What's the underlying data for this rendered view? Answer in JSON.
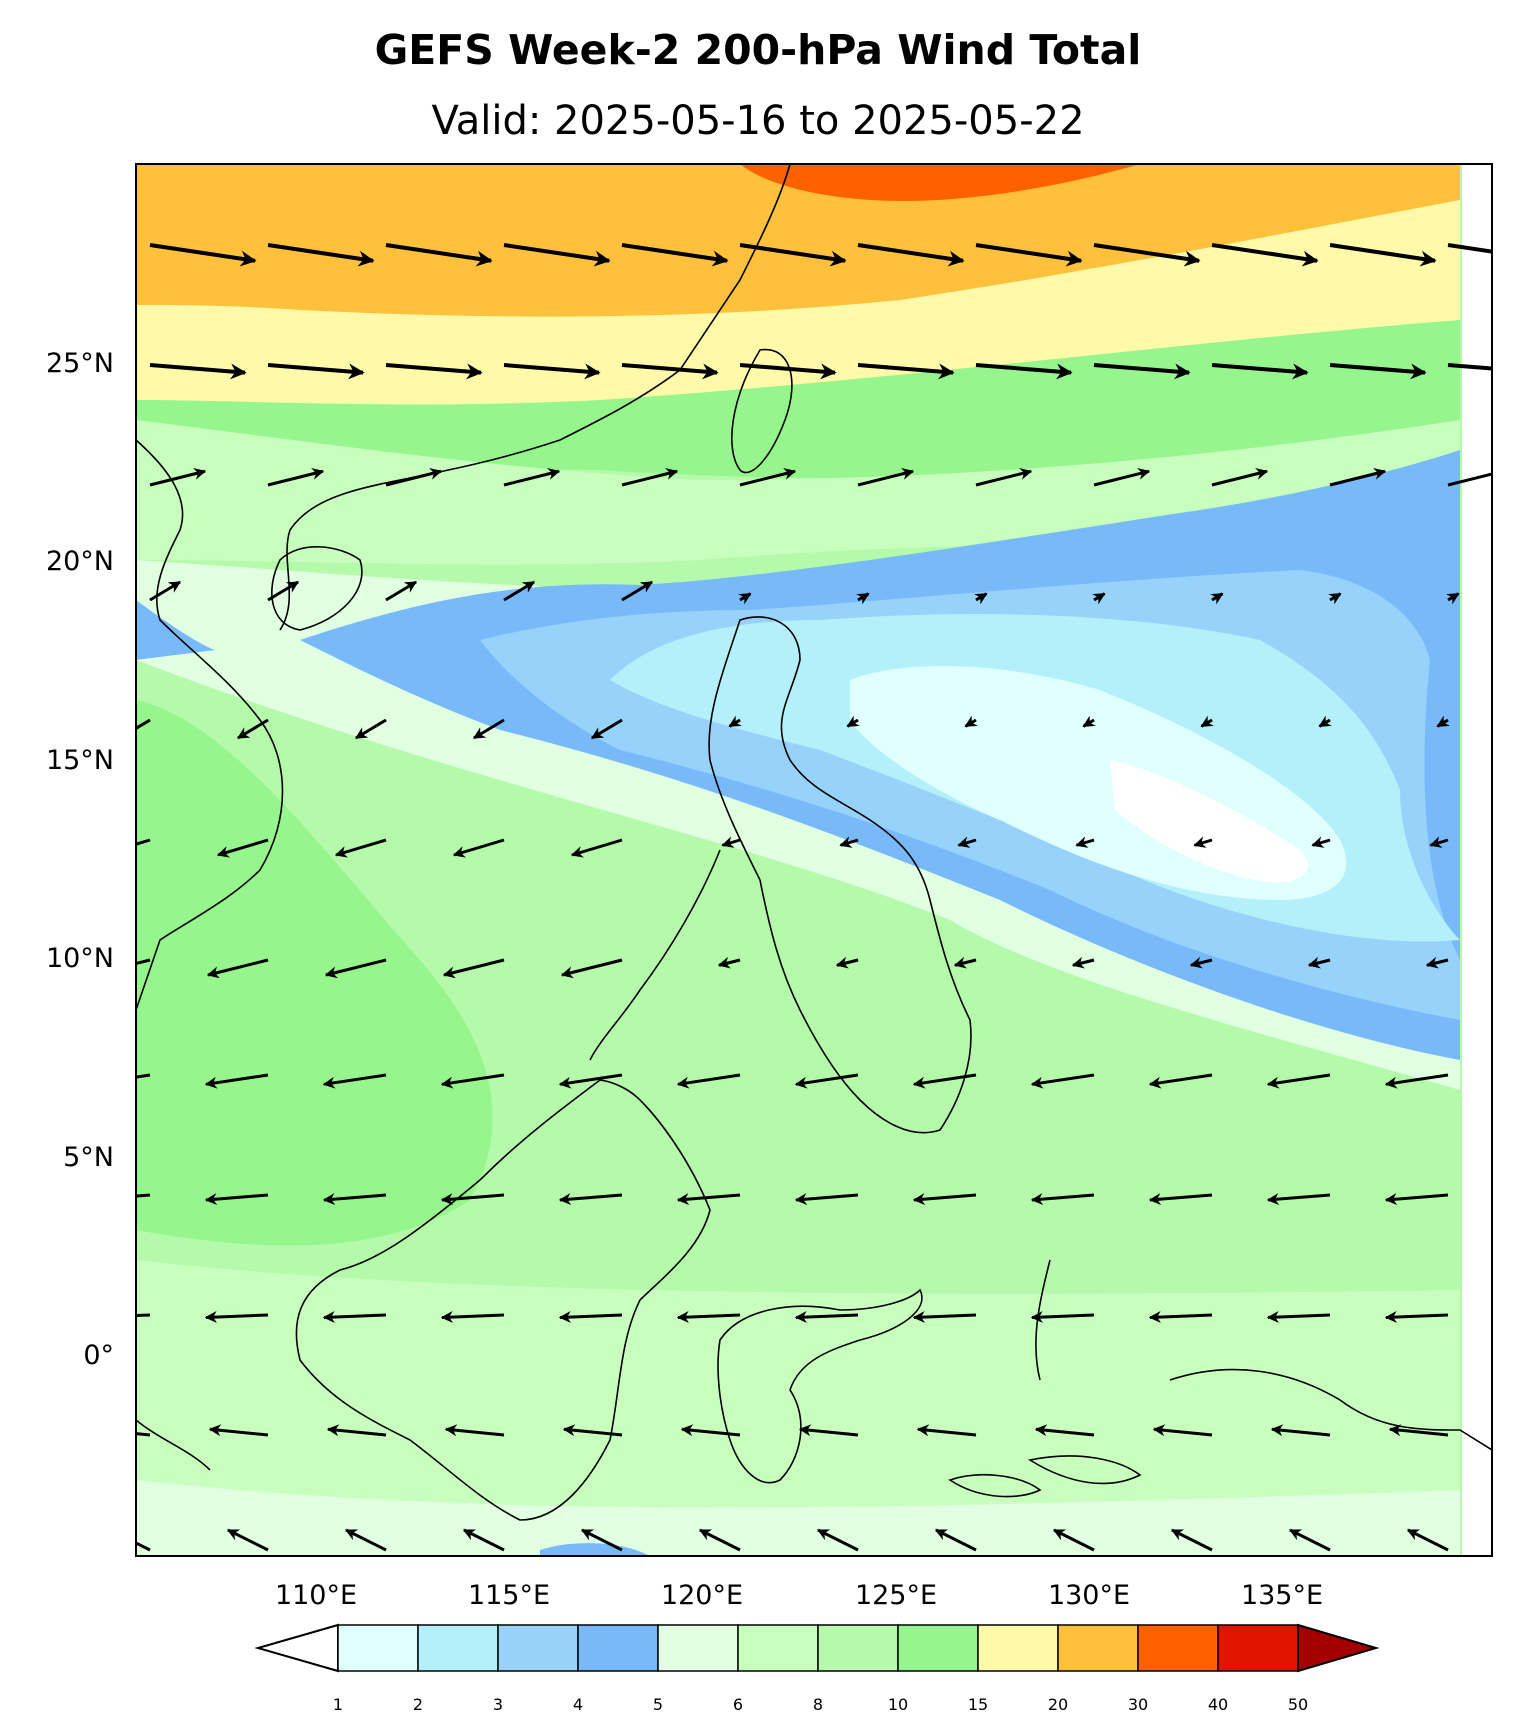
{
  "title": "GEFS Week-2 200-hPa Wind Total",
  "subtitle": "Valid: 2025-05-16 to 2025-05-22",
  "map": {
    "lat_labels": [
      "25°N",
      "20°N",
      "15°N",
      "10°N",
      "5°N",
      "0°"
    ],
    "lon_labels": [
      "110°E",
      "115°E",
      "120°E",
      "125°E",
      "130°E",
      "135°E"
    ],
    "lon_range": [
      105,
      139
    ],
    "lat_range": [
      -5,
      30
    ],
    "variable": "200-hPa wind speed",
    "coastline_color": "#000000",
    "vector_color": "#000000"
  },
  "colorbar": {
    "ticks": [
      "1",
      "2",
      "3",
      "4",
      "5",
      "6",
      "8",
      "10",
      "15",
      "20",
      "30",
      "40",
      "50"
    ],
    "colors": [
      "#e0ffff",
      "#b4f0fa",
      "#96d2fa",
      "#78b9fa",
      "#e1ffe1",
      "#c8ffbe",
      "#b4faaa",
      "#96f58c",
      "#fffaaa",
      "#ffc03c",
      "#ff6000",
      "#e11400"
    ],
    "under_color": "#ffffff",
    "over_color": "#a50000"
  },
  "wind_regions": [
    {
      "area": "subtropical jet near 27°N",
      "range": "20-40",
      "direction": "westerly"
    },
    {
      "area": "around 25°N",
      "range": "10-20",
      "direction": "westerly"
    },
    {
      "area": "Philippine Sea 12-16°N",
      "range": "1-5",
      "direction": "weak"
    },
    {
      "area": "South China Sea and Borneo",
      "range": "6-15",
      "direction": "easterly"
    }
  ]
}
